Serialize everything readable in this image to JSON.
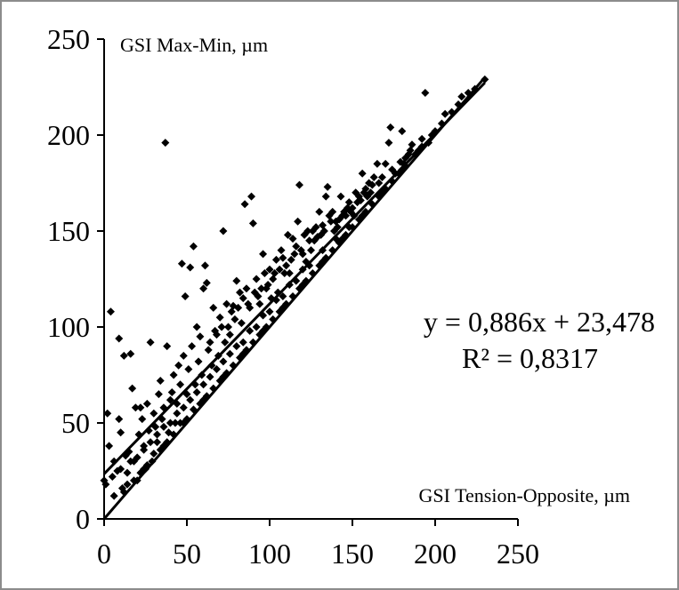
{
  "chart_data": {
    "type": "scatter",
    "ylabel": "GSI Max-Min, µm",
    "xlabel": "GSI Tension-Opposite, µm",
    "xlim": [
      0,
      250
    ],
    "ylim": [
      0,
      250
    ],
    "x_ticks": [
      "0",
      "50",
      "100",
      "150",
      "200",
      "250"
    ],
    "y_ticks": [
      "0",
      "50",
      "100",
      "150",
      "200",
      "250"
    ],
    "grid": false,
    "marker_color": "#000000",
    "marker": "diamond",
    "trendline": {
      "slope": 0.886,
      "intercept": 23.478,
      "equation": "y = 0,886x + 23,478",
      "r_squared": "R² = 0,8317"
    },
    "reference_line": {
      "slope": 1,
      "intercept": 0
    },
    "points": [
      [
        0,
        20
      ],
      [
        1,
        18
      ],
      [
        2,
        55
      ],
      [
        3,
        38
      ],
      [
        4,
        108
      ],
      [
        5,
        22
      ],
      [
        6,
        30
      ],
      [
        8,
        25
      ],
      [
        9,
        52
      ],
      [
        9,
        94
      ],
      [
        10,
        45
      ],
      [
        11,
        16
      ],
      [
        12,
        85
      ],
      [
        13,
        33
      ],
      [
        14,
        24
      ],
      [
        15,
        35
      ],
      [
        16,
        86
      ],
      [
        17,
        68
      ],
      [
        18,
        30
      ],
      [
        19,
        58
      ],
      [
        20,
        20
      ],
      [
        21,
        44
      ],
      [
        22,
        58
      ],
      [
        23,
        52
      ],
      [
        24,
        38
      ],
      [
        25,
        26
      ],
      [
        26,
        60
      ],
      [
        27,
        46
      ],
      [
        28,
        92
      ],
      [
        29,
        30
      ],
      [
        30,
        55
      ],
      [
        31,
        48
      ],
      [
        32,
        40
      ],
      [
        33,
        65
      ],
      [
        34,
        72
      ],
      [
        35,
        52
      ],
      [
        36,
        58
      ],
      [
        37,
        196
      ],
      [
        38,
        90
      ],
      [
        39,
        45
      ],
      [
        40,
        62
      ],
      [
        41,
        66
      ],
      [
        42,
        75
      ],
      [
        43,
        50
      ],
      [
        44,
        60
      ],
      [
        45,
        80
      ],
      [
        46,
        70
      ],
      [
        47,
        133
      ],
      [
        48,
        85
      ],
      [
        49,
        116
      ],
      [
        50,
        65
      ],
      [
        51,
        78
      ],
      [
        52,
        131
      ],
      [
        53,
        90
      ],
      [
        54,
        142
      ],
      [
        55,
        70
      ],
      [
        56,
        100
      ],
      [
        57,
        82
      ],
      [
        58,
        95
      ],
      [
        59,
        75
      ],
      [
        60,
        120
      ],
      [
        61,
        132
      ],
      [
        62,
        123
      ],
      [
        63,
        88
      ],
      [
        64,
        92
      ],
      [
        65,
        80
      ],
      [
        66,
        110
      ],
      [
        67,
        98
      ],
      [
        68,
        96
      ],
      [
        69,
        85
      ],
      [
        70,
        105
      ],
      [
        71,
        100
      ],
      [
        72,
        150
      ],
      [
        73,
        92
      ],
      [
        74,
        112
      ],
      [
        75,
        100
      ],
      [
        76,
        96
      ],
      [
        77,
        108
      ],
      [
        78,
        111
      ],
      [
        79,
        104
      ],
      [
        80,
        124
      ],
      [
        81,
        110
      ],
      [
        82,
        118
      ],
      [
        83,
        102
      ],
      [
        84,
        115
      ],
      [
        85,
        164
      ],
      [
        86,
        120
      ],
      [
        87,
        112
      ],
      [
        88,
        110
      ],
      [
        89,
        168
      ],
      [
        90,
        154
      ],
      [
        91,
        118
      ],
      [
        92,
        125
      ],
      [
        93,
        116
      ],
      [
        94,
        112
      ],
      [
        95,
        120
      ],
      [
        96,
        138
      ],
      [
        97,
        128
      ],
      [
        98,
        120
      ],
      [
        99,
        122
      ],
      [
        100,
        130
      ],
      [
        101,
        115
      ],
      [
        102,
        125
      ],
      [
        103,
        128
      ],
      [
        104,
        135
      ],
      [
        105,
        118
      ],
      [
        106,
        130
      ],
      [
        107,
        140
      ],
      [
        108,
        136
      ],
      [
        109,
        128
      ],
      [
        110,
        132
      ],
      [
        111,
        148
      ],
      [
        112,
        128
      ],
      [
        113,
        135
      ],
      [
        114,
        146
      ],
      [
        115,
        138
      ],
      [
        116,
        142
      ],
      [
        117,
        155
      ],
      [
        118,
        174
      ],
      [
        119,
        140
      ],
      [
        120,
        138
      ],
      [
        121,
        148
      ],
      [
        122,
        134
      ],
      [
        123,
        150
      ],
      [
        124,
        145
      ],
      [
        125,
        140
      ],
      [
        126,
        150
      ],
      [
        127,
        145
      ],
      [
        128,
        152
      ],
      [
        129,
        147
      ],
      [
        130,
        160
      ],
      [
        131,
        148
      ],
      [
        132,
        153
      ],
      [
        133,
        150
      ],
      [
        134,
        168
      ],
      [
        135,
        173
      ],
      [
        136,
        158
      ],
      [
        137,
        155
      ],
      [
        138,
        160
      ],
      [
        139,
        150
      ],
      [
        140,
        155
      ],
      [
        141,
        152
      ],
      [
        142,
        156
      ],
      [
        143,
        168
      ],
      [
        144,
        158
      ],
      [
        145,
        160
      ],
      [
        146,
        158
      ],
      [
        147,
        162
      ],
      [
        148,
        165
      ],
      [
        149,
        160
      ],
      [
        150,
        162
      ],
      [
        151,
        158
      ],
      [
        152,
        170
      ],
      [
        153,
        165
      ],
      [
        154,
        168
      ],
      [
        155,
        166
      ],
      [
        156,
        180
      ],
      [
        157,
        170
      ],
      [
        158,
        172
      ],
      [
        159,
        168
      ],
      [
        160,
        175
      ],
      [
        161,
        170
      ],
      [
        162,
        174
      ],
      [
        163,
        178
      ],
      [
        165,
        185
      ],
      [
        166,
        175
      ],
      [
        168,
        178
      ],
      [
        170,
        185
      ],
      [
        172,
        196
      ],
      [
        173,
        204
      ],
      [
        174,
        182
      ],
      [
        176,
        180
      ],
      [
        178,
        180
      ],
      [
        179,
        186
      ],
      [
        180,
        202
      ],
      [
        181,
        185
      ],
      [
        182,
        188
      ],
      [
        184,
        190
      ],
      [
        185,
        192
      ],
      [
        186,
        195
      ],
      [
        188,
        190
      ],
      [
        190,
        192
      ],
      [
        192,
        198
      ],
      [
        194,
        222
      ],
      [
        196,
        196
      ],
      [
        198,
        200
      ],
      [
        200,
        202
      ],
      [
        204,
        206
      ],
      [
        206,
        211
      ],
      [
        210,
        212
      ],
      [
        214,
        216
      ],
      [
        216,
        220
      ],
      [
        220,
        222
      ],
      [
        224,
        224
      ],
      [
        230,
        229
      ],
      [
        6,
        12
      ],
      [
        14,
        18
      ],
      [
        22,
        24
      ],
      [
        30,
        34
      ],
      [
        38,
        40
      ],
      [
        46,
        50
      ],
      [
        54,
        57
      ],
      [
        62,
        64
      ],
      [
        70,
        72
      ],
      [
        78,
        80
      ],
      [
        86,
        88
      ],
      [
        94,
        96
      ],
      [
        102,
        104
      ],
      [
        110,
        112
      ],
      [
        118,
        120
      ],
      [
        126,
        128
      ],
      [
        134,
        136
      ],
      [
        142,
        144
      ],
      [
        150,
        152
      ],
      [
        158,
        160
      ],
      [
        166,
        168
      ],
      [
        174,
        176
      ],
      [
        182,
        184
      ],
      [
        18,
        20
      ],
      [
        26,
        28
      ],
      [
        34,
        36
      ],
      [
        42,
        44
      ],
      [
        50,
        52
      ],
      [
        58,
        60
      ],
      [
        66,
        68
      ],
      [
        74,
        76
      ],
      [
        82,
        84
      ],
      [
        90,
        92
      ],
      [
        98,
        100
      ],
      [
        106,
        108
      ],
      [
        114,
        116
      ],
      [
        122,
        124
      ],
      [
        130,
        132
      ],
      [
        138,
        140
      ],
      [
        146,
        148
      ],
      [
        154,
        156
      ],
      [
        162,
        164
      ],
      [
        170,
        172
      ],
      [
        178,
        180
      ],
      [
        20,
        32
      ],
      [
        28,
        40
      ],
      [
        36,
        48
      ],
      [
        44,
        55
      ],
      [
        52,
        62
      ],
      [
        60,
        70
      ],
      [
        68,
        78
      ],
      [
        76,
        86
      ],
      [
        84,
        92
      ],
      [
        92,
        100
      ],
      [
        100,
        108
      ],
      [
        108,
        116
      ],
      [
        116,
        124
      ],
      [
        124,
        132
      ],
      [
        132,
        140
      ],
      [
        140,
        146
      ],
      [
        148,
        152
      ],
      [
        10,
        26
      ],
      [
        16,
        30
      ],
      [
        24,
        36
      ],
      [
        32,
        44
      ],
      [
        40,
        50
      ],
      [
        48,
        58
      ],
      [
        56,
        66
      ],
      [
        64,
        74
      ],
      [
        72,
        82
      ],
      [
        80,
        90
      ],
      [
        88,
        98
      ],
      [
        96,
        106
      ],
      [
        104,
        114
      ],
      [
        112,
        122
      ],
      [
        120,
        130
      ],
      [
        12,
        14
      ],
      [
        24,
        26
      ],
      [
        36,
        38
      ],
      [
        48,
        50
      ],
      [
        60,
        62
      ],
      [
        72,
        74
      ],
      [
        84,
        86
      ],
      [
        96,
        98
      ],
      [
        108,
        110
      ],
      [
        120,
        122
      ],
      [
        132,
        134
      ],
      [
        144,
        146
      ],
      [
        156,
        158
      ],
      [
        168,
        170
      ],
      [
        180,
        182
      ],
      [
        192,
        194
      ]
    ]
  }
}
